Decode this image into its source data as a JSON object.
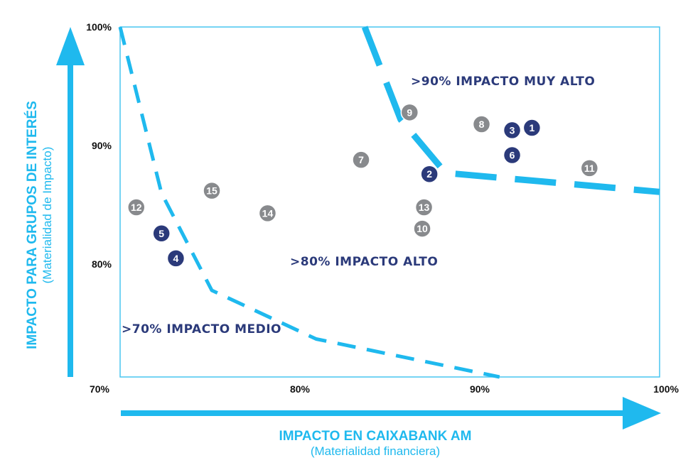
{
  "chart_data": {
    "type": "scatter",
    "title": "",
    "x_axis": {
      "label": "IMPACTO EN CAIXABANK AM",
      "sublabel": "(Materialidad financiera)",
      "range": [
        70,
        100
      ],
      "ticks": [
        {
          "value": 70,
          "label": "70%"
        },
        {
          "value": 80,
          "label": "80%"
        },
        {
          "value": 90,
          "label": "90%"
        },
        {
          "value": 100,
          "label": "100%"
        }
      ]
    },
    "y_axis": {
      "label": "IMPACTO PARA GRUPOS DE INTERÉS",
      "sublabel": "(Materialidad de Impacto)",
      "range": [
        70.5,
        100
      ],
      "ticks": [
        {
          "value": 80,
          "label": "80%"
        },
        {
          "value": 90,
          "label": "90%"
        },
        {
          "value": 100,
          "label": "100%"
        }
      ]
    },
    "grid": false,
    "zones": [
      {
        "label": ">90% IMPACTO MUY ALTO"
      },
      {
        "label": ">80% IMPACTO ALTO"
      },
      {
        "label": ">70% IMPACTO MEDIO"
      }
    ],
    "boundaries": [
      {
        "name": "alto",
        "points": [
          [
            70.0,
            100.0
          ],
          [
            72.3,
            86.0
          ],
          [
            75.1,
            77.8
          ],
          [
            80.9,
            73.7
          ],
          [
            91.1,
            70.5
          ]
        ]
      },
      {
        "name": "muy_alto",
        "points": [
          [
            83.6,
            100.0
          ],
          [
            85.6,
            92.2
          ],
          [
            88.1,
            87.7
          ],
          [
            100.0,
            86.1
          ]
        ]
      }
    ],
    "points": [
      {
        "id": "1",
        "x": 92.9,
        "y": 91.5,
        "group": "dark"
      },
      {
        "id": "2",
        "x": 87.2,
        "y": 87.6,
        "group": "dark"
      },
      {
        "id": "3",
        "x": 91.8,
        "y": 91.3,
        "group": "dark"
      },
      {
        "id": "4",
        "x": 73.1,
        "y": 80.5,
        "group": "dark"
      },
      {
        "id": "5",
        "x": 72.3,
        "y": 82.6,
        "group": "dark"
      },
      {
        "id": "6",
        "x": 91.8,
        "y": 89.2,
        "group": "dark"
      },
      {
        "id": "7",
        "x": 83.4,
        "y": 88.8,
        "group": "grey"
      },
      {
        "id": "8",
        "x": 90.1,
        "y": 91.8,
        "group": "grey"
      },
      {
        "id": "9",
        "x": 86.1,
        "y": 92.8,
        "group": "grey"
      },
      {
        "id": "10",
        "x": 86.8,
        "y": 83.0,
        "group": "grey"
      },
      {
        "id": "11",
        "x": 96.1,
        "y": 88.1,
        "group": "grey"
      },
      {
        "id": "12",
        "x": 70.9,
        "y": 84.8,
        "group": "grey"
      },
      {
        "id": "13",
        "x": 86.9,
        "y": 84.8,
        "group": "grey"
      },
      {
        "id": "14",
        "x": 78.2,
        "y": 84.3,
        "group": "grey"
      },
      {
        "id": "15",
        "x": 75.1,
        "y": 86.2,
        "group": "grey"
      }
    ]
  },
  "colors": {
    "accent": "#1fb9ee",
    "dark_point": "#2b3a7a",
    "grey_point": "#888a8d",
    "zone_text": "#2b3a7a",
    "frame": "#49c5f1"
  }
}
